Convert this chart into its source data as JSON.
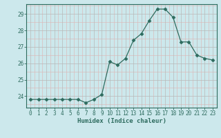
{
  "x": [
    0,
    1,
    2,
    3,
    4,
    5,
    6,
    7,
    8,
    9,
    10,
    11,
    12,
    13,
    14,
    15,
    16,
    17,
    18,
    19,
    20,
    21,
    22,
    23
  ],
  "y": [
    23.8,
    23.8,
    23.8,
    23.8,
    23.8,
    23.8,
    23.8,
    23.6,
    23.8,
    24.1,
    26.1,
    25.9,
    26.3,
    27.4,
    27.8,
    28.6,
    29.3,
    29.3,
    28.8,
    27.3,
    27.3,
    26.5,
    26.3,
    26.2
  ],
  "xlabel": "Humidex (Indice chaleur)",
  "ylabel": "",
  "ylim": [
    23.3,
    29.6
  ],
  "xlim": [
    -0.5,
    23.5
  ],
  "yticks": [
    24,
    25,
    26,
    27,
    28,
    29
  ],
  "xticks": [
    0,
    1,
    2,
    3,
    4,
    5,
    6,
    7,
    8,
    9,
    10,
    11,
    12,
    13,
    14,
    15,
    16,
    17,
    18,
    19,
    20,
    21,
    22,
    23
  ],
  "line_color": "#2d6b5e",
  "marker": "D",
  "marker_size": 2.5,
  "bg_color": "#cce8ec",
  "grid_color_major": "#b8b8b8",
  "grid_color_minor": "#dbbcbc",
  "xlabel_fontsize": 6.5,
  "tick_fontsize": 5.5
}
